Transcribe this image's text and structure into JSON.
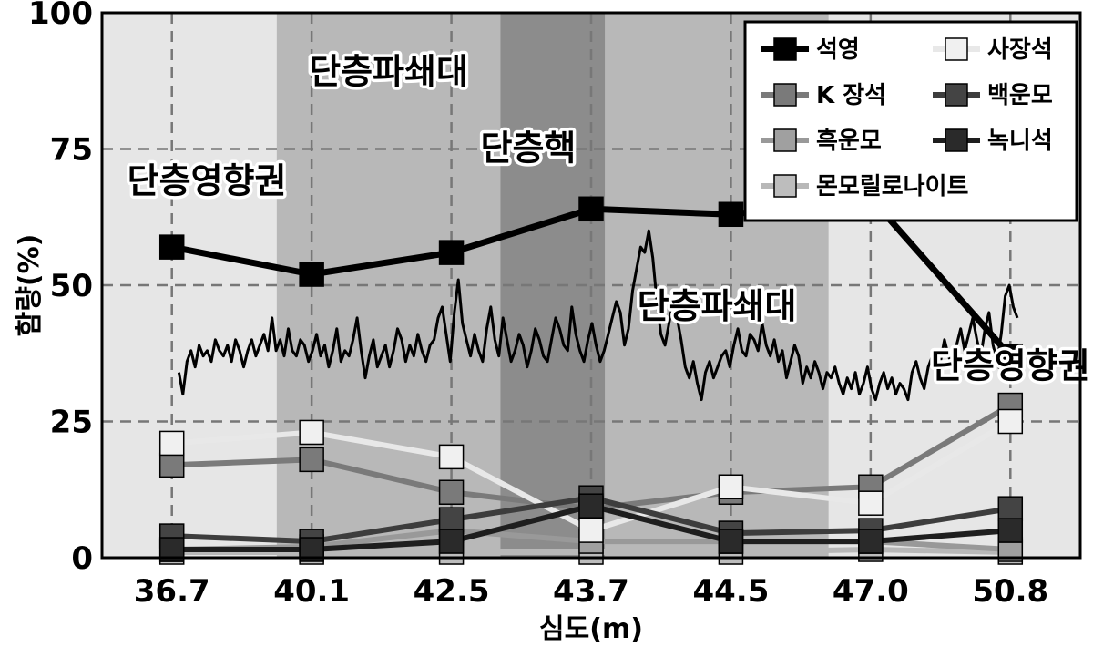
{
  "chart_data": {
    "type": "line",
    "xlabel": "심도(m)",
    "ylabel": "함량(%)",
    "categories": [
      "36.7",
      "40.1",
      "42.5",
      "43.7",
      "44.5",
      "47.0",
      "50.8"
    ],
    "ylim": [
      0,
      100
    ],
    "yticks": [
      0,
      25,
      50,
      75,
      100
    ],
    "grid": true,
    "legend_position": "top-right",
    "zones": [
      {
        "label": "단층영향권",
        "from": -0.5,
        "to": 0.75,
        "color": "#e6e6e6"
      },
      {
        "label": "단층파쇄대",
        "from": 0.75,
        "to": 2.35,
        "color": "#b8b8b8"
      },
      {
        "label": "단층핵",
        "from": 2.35,
        "to": 3.1,
        "color": "#8c8c8c"
      },
      {
        "label": "단층파쇄대",
        "from": 3.1,
        "to": 4.7,
        "color": "#b8b8b8"
      },
      {
        "label": "단층영향권",
        "from": 4.7,
        "to": 6.5,
        "color": "#e6e6e6"
      }
    ],
    "zone_labels": [
      {
        "text": "단층영향권",
        "x": 0.25,
        "y": 67
      },
      {
        "text": "단층파쇄대",
        "x": 1.55,
        "y": 87
      },
      {
        "text": "단층핵",
        "x": 2.55,
        "y": 73
      },
      {
        "text": "단층파쇄대",
        "x": 3.9,
        "y": 44
      },
      {
        "text": "단층영향권",
        "x": 6.0,
        "y": 33
      }
    ],
    "series": [
      {
        "name": "석영",
        "color": "#000000",
        "marker": "#000000",
        "values": [
          57,
          52,
          56,
          64,
          63,
          66,
          37
        ]
      },
      {
        "name": "사장석",
        "color": "#e8e8e8",
        "marker": "#f0f0f0",
        "values": [
          21,
          23,
          18.5,
          5,
          13,
          10,
          25
        ]
      },
      {
        "name": "K 장석",
        "color": "#7a7a7a",
        "marker": "#7a7a7a",
        "values": [
          17,
          18,
          12,
          9,
          12,
          13,
          28
        ]
      },
      {
        "name": "백운모",
        "color": "#3d3d3d",
        "marker": "#444444",
        "values": [
          4,
          3,
          7,
          11,
          4.5,
          5,
          9
        ]
      },
      {
        "name": "흑운모",
        "color": "#999999",
        "marker": "#a0a0a0",
        "values": [
          1.5,
          2,
          5,
          3,
          3,
          3,
          1.5
        ]
      },
      {
        "name": "녹니석",
        "color": "#1e1e1e",
        "marker": "#2a2a2a",
        "values": [
          1.5,
          1.5,
          3,
          9.5,
          3,
          3,
          5
        ]
      },
      {
        "name": "몬모릴로나이트",
        "color": "#b8b8b8",
        "marker": "#bdbdbd",
        "values": [
          1,
          1,
          1,
          1,
          1,
          1.5,
          1
        ]
      }
    ],
    "profile": {
      "description_free": true,
      "values": [
        34,
        30,
        36,
        38,
        35,
        39,
        37,
        38,
        36,
        40,
        38,
        37,
        39,
        36,
        40,
        38,
        35,
        38,
        40,
        37,
        39,
        41,
        38,
        44,
        38,
        40,
        37,
        42,
        38,
        37,
        40,
        39,
        36,
        38,
        41,
        37,
        39,
        35,
        38,
        42,
        36,
        38,
        37,
        40,
        44,
        38,
        33,
        37,
        40,
        35,
        37,
        39,
        35,
        38,
        42,
        40,
        36,
        39,
        37,
        41,
        38,
        36,
        39,
        40,
        44,
        46,
        41,
        36,
        45,
        51,
        43,
        40,
        37,
        41,
        38,
        36,
        42,
        46,
        40,
        37,
        44,
        40,
        36,
        38,
        41,
        39,
        35,
        38,
        42,
        40,
        37,
        36,
        40,
        44,
        42,
        39,
        38,
        46,
        41,
        38,
        36,
        40,
        43,
        39,
        36,
        38,
        41,
        44,
        47,
        45,
        39,
        42,
        49,
        53,
        57,
        56,
        60,
        55,
        47,
        41,
        39,
        43,
        47,
        44,
        40,
        35,
        33,
        36,
        32,
        29,
        34,
        36,
        33,
        35,
        37,
        38,
        35,
        39,
        42,
        38,
        37,
        41,
        40,
        38,
        43,
        39,
        37,
        40,
        36,
        38,
        33,
        36,
        39,
        37,
        32,
        35,
        33,
        36,
        34,
        31,
        34,
        33,
        35,
        32,
        30,
        33,
        31,
        34,
        30,
        32,
        35,
        31,
        29,
        32,
        34,
        31,
        33,
        30,
        32,
        31,
        29,
        34,
        36,
        33,
        31,
        35,
        37,
        34,
        36,
        40,
        37,
        35,
        39,
        42,
        38,
        41,
        44,
        40,
        37,
        42,
        45,
        39,
        36,
        41,
        48,
        50,
        46,
        44
      ]
    },
    "profile_x_range": [
      0.05,
      6.05
    ]
  }
}
